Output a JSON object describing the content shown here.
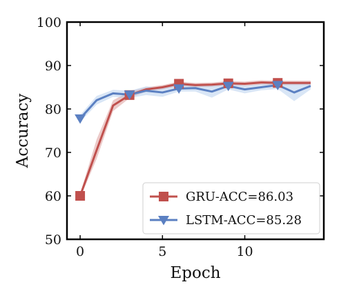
{
  "chart_data": {
    "type": "line",
    "xlabel": "Epoch",
    "ylabel": "Accuracy",
    "xlim": [
      -0.8,
      14.8
    ],
    "ylim": [
      50,
      100
    ],
    "x_ticks": [
      0,
      5,
      10
    ],
    "y_ticks": [
      50,
      60,
      70,
      80,
      90,
      100
    ],
    "grid": false,
    "legend_position": "lower-right",
    "series": [
      {
        "name": "GRU-ACC=86.03",
        "color": "#c0504d",
        "marker": "square",
        "x": [
          0,
          1,
          2,
          3,
          4,
          5,
          6,
          7,
          8,
          9,
          10,
          11,
          12,
          13,
          14
        ],
        "values": [
          60.0,
          70.5,
          80.8,
          83.2,
          84.5,
          85.0,
          85.8,
          85.5,
          85.6,
          85.9,
          85.8,
          86.1,
          86.0,
          86.0,
          86.0
        ],
        "band_lower": [
          59.5,
          68.5,
          79.5,
          82.5,
          84.0,
          84.5,
          85.3,
          85.0,
          85.1,
          85.4,
          85.3,
          85.6,
          85.5,
          85.5,
          85.5
        ],
        "band_upper": [
          60.5,
          73.0,
          82.0,
          84.0,
          85.0,
          85.5,
          86.3,
          86.0,
          86.1,
          86.4,
          86.3,
          86.6,
          86.5,
          86.5,
          86.5
        ],
        "marker_every": 3
      },
      {
        "name": "LSTM-ACC=85.28",
        "color": "#5b80c2",
        "band_color": "#aac8ec",
        "marker": "triangle-down",
        "x": [
          0,
          1,
          2,
          3,
          4,
          5,
          6,
          7,
          8,
          9,
          10,
          11,
          12,
          13,
          14
        ],
        "values": [
          77.8,
          82.0,
          83.6,
          83.3,
          84.2,
          83.8,
          84.7,
          84.8,
          84.0,
          85.3,
          84.5,
          85.0,
          85.5,
          83.8,
          85.3
        ],
        "band_lower": [
          77.0,
          81.0,
          82.8,
          82.5,
          83.2,
          82.8,
          84.0,
          84.0,
          82.6,
          84.5,
          83.6,
          84.3,
          84.6,
          81.8,
          84.5
        ],
        "band_upper": [
          78.6,
          83.0,
          84.4,
          84.2,
          85.2,
          84.8,
          85.5,
          85.6,
          85.4,
          86.1,
          85.4,
          85.7,
          86.4,
          85.8,
          86.1
        ],
        "marker_every": 3
      }
    ]
  }
}
